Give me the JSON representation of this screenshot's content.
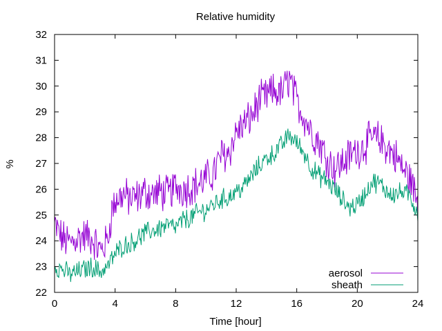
{
  "chart_data": {
    "type": "line",
    "title": "Relative humidity",
    "xlabel": "Time [hour]",
    "ylabel": "%",
    "xlim": [
      0,
      24
    ],
    "ylim": [
      22,
      32
    ],
    "x_ticks": [
      0,
      4,
      8,
      12,
      16,
      20,
      24
    ],
    "y_ticks": [
      22,
      23,
      24,
      25,
      26,
      27,
      28,
      29,
      30,
      31,
      32
    ],
    "grid": false,
    "legend_position": "bottom-right",
    "series": [
      {
        "name": "aerosol",
        "color": "#9400d3",
        "points": [
          [
            0,
            24.6
          ],
          [
            0.5,
            24.1
          ],
          [
            1,
            23.9
          ],
          [
            1.5,
            24.1
          ],
          [
            2,
            24.2
          ],
          [
            2.5,
            24.1
          ],
          [
            3,
            23.6
          ],
          [
            3.5,
            24.0
          ],
          [
            3.8,
            25.2
          ],
          [
            4,
            25.5
          ],
          [
            4.5,
            25.8
          ],
          [
            5,
            25.6
          ],
          [
            5.5,
            25.7
          ],
          [
            6,
            25.9
          ],
          [
            6.5,
            25.8
          ],
          [
            7,
            25.9
          ],
          [
            7.5,
            25.8
          ],
          [
            8,
            26.1
          ],
          [
            8.5,
            26.0
          ],
          [
            9,
            26.1
          ],
          [
            9.5,
            26.2
          ],
          [
            10,
            26.4
          ],
          [
            10.5,
            26.6
          ],
          [
            11,
            27.3
          ],
          [
            11.5,
            27.4
          ],
          [
            12,
            28.2
          ],
          [
            12.5,
            28.5
          ],
          [
            13,
            28.8
          ],
          [
            13.5,
            29.4
          ],
          [
            14,
            29.6
          ],
          [
            14.5,
            29.8
          ],
          [
            15,
            29.7
          ],
          [
            15.5,
            30.3
          ],
          [
            16,
            29.4
          ],
          [
            16.5,
            28.8
          ],
          [
            17,
            28.2
          ],
          [
            17.5,
            27.8
          ],
          [
            18,
            27.2
          ],
          [
            18.5,
            26.8
          ],
          [
            19,
            27.0
          ],
          [
            19.5,
            27.3
          ],
          [
            20,
            27.5
          ],
          [
            20.5,
            27.7
          ],
          [
            21,
            28.0
          ],
          [
            21.5,
            27.9
          ],
          [
            22,
            27.6
          ],
          [
            22.5,
            27.3
          ],
          [
            23,
            26.8
          ],
          [
            23.5,
            26.4
          ],
          [
            24,
            25.5
          ]
        ]
      },
      {
        "name": "sheath",
        "color": "#009e73",
        "points": [
          [
            0,
            23.0
          ],
          [
            0.5,
            22.9
          ],
          [
            1,
            22.7
          ],
          [
            1.5,
            22.8
          ],
          [
            2,
            22.9
          ],
          [
            2.5,
            23.0
          ],
          [
            3,
            22.8
          ],
          [
            3.5,
            23.0
          ],
          [
            4,
            23.5
          ],
          [
            4.5,
            23.8
          ],
          [
            5,
            23.9
          ],
          [
            5.5,
            24.1
          ],
          [
            6,
            24.3
          ],
          [
            6.5,
            24.4
          ],
          [
            7,
            24.5
          ],
          [
            7.5,
            24.6
          ],
          [
            8,
            24.5
          ],
          [
            8.5,
            24.8
          ],
          [
            9,
            24.9
          ],
          [
            9.5,
            25.1
          ],
          [
            10,
            25.2
          ],
          [
            10.5,
            25.4
          ],
          [
            11,
            25.6
          ],
          [
            11.5,
            25.7
          ],
          [
            12,
            25.9
          ],
          [
            12.5,
            26.1
          ],
          [
            13,
            26.5
          ],
          [
            13.5,
            26.9
          ],
          [
            14,
            27.2
          ],
          [
            14.5,
            27.4
          ],
          [
            15,
            27.7
          ],
          [
            15.5,
            28.1
          ],
          [
            16,
            27.8
          ],
          [
            16.5,
            27.4
          ],
          [
            17,
            26.8
          ],
          [
            17.5,
            26.5
          ],
          [
            18,
            26.3
          ],
          [
            18.5,
            26.0
          ],
          [
            19,
            25.6
          ],
          [
            19.5,
            25.3
          ],
          [
            20,
            25.4
          ],
          [
            20.5,
            25.8
          ],
          [
            21,
            26.3
          ],
          [
            21.5,
            26.2
          ],
          [
            22,
            25.9
          ],
          [
            22.5,
            25.8
          ],
          [
            23,
            25.9
          ],
          [
            23.5,
            25.7
          ],
          [
            24,
            25.1
          ]
        ]
      }
    ]
  }
}
